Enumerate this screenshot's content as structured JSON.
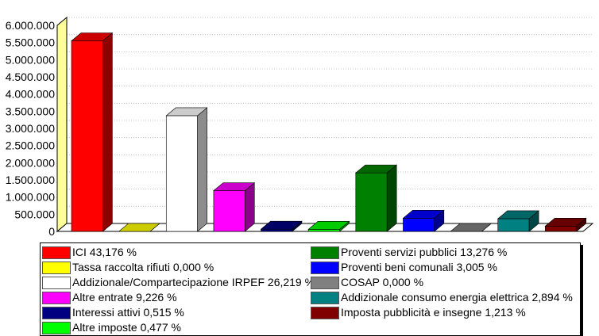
{
  "chart_data": {
    "type": "bar",
    "categories": [
      "ICI",
      "Tassa raccolta rifiuti",
      "Addizionale/Compartecipazione IRPEF",
      "Altre entrate",
      "Interessi attivi",
      "Altre imposte",
      "Proventi servizi pubblici",
      "Proventi beni comunali",
      "COSAP",
      "Addizionale consumo energia elettrica",
      "Imposta pubblicità e insegne"
    ],
    "values": [
      5550000,
      0,
      3370000,
      1185000,
      66000,
      61000,
      1705000,
      385000,
      0,
      370000,
      155000
    ],
    "colors": [
      "#ff0000",
      "#ffff00",
      "#ffffff",
      "#ff00ff",
      "#000080",
      "#00ff00",
      "#008000",
      "#0000ff",
      "#808080",
      "#008080",
      "#800000"
    ],
    "ylim": [
      0,
      6000000
    ],
    "yticks": [
      "0",
      "500.000",
      "1.000.000",
      "1.500.000",
      "2.000.000",
      "2.500.000",
      "3.000.000",
      "3.500.000",
      "4.000.000",
      "4.500.000",
      "5.000.000",
      "5.500.000",
      "6.000.000"
    ],
    "grid": true,
    "legend_position": "bottom",
    "legend": [
      {
        "label": "ICI 43,176 %",
        "color": "#ff0000"
      },
      {
        "label": "Proventi servizi pubblici 13,276 %",
        "color": "#008000"
      },
      {
        "label": "Tassa raccolta rifiuti 0,000 %",
        "color": "#ffff00"
      },
      {
        "label": "Proventi beni comunali 3,005 %",
        "color": "#0000ff"
      },
      {
        "label": "Addizionale/Compartecipazione IRPEF 26,219 %",
        "color": "#ffffff"
      },
      {
        "label": "COSAP 0,000 %",
        "color": "#808080"
      },
      {
        "label": "Altre entrate 9,226 %",
        "color": "#ff00ff"
      },
      {
        "label": "Addizionale consumo energia elettrica 2,894 %",
        "color": "#008080"
      },
      {
        "label": "Interessi attivi 0,515 %",
        "color": "#000080"
      },
      {
        "label": "Imposta pubblicità e insegne 1,213 %",
        "color": "#800000"
      },
      {
        "label": "Altre imposte 0,477 %",
        "color": "#00ff00"
      }
    ]
  }
}
